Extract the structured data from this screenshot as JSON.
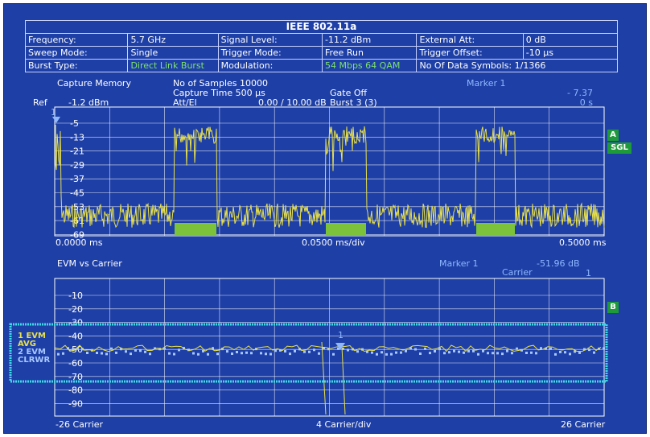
{
  "title": "IEEE 802.11a",
  "info": [
    {
      "label": "Frequency:",
      "value": "5.7 GHz",
      "label2": "Signal Level:",
      "value2": "-11.2 dBm",
      "label3": "External Att:",
      "value3": "0 dB"
    },
    {
      "label": "Sweep Mode:",
      "value": "Single",
      "label2": "Trigger Mode:",
      "value2": "Free Run",
      "label3": "Trigger Offset:",
      "value3": "-10 μs"
    },
    {
      "label": "Burst Type:",
      "value": "Direct Link Burst",
      "label2": "Modulation:",
      "value2": "54 Mbps 64 QAM",
      "label3": "No Of Data Symbols: 1/1366",
      "value3": ""
    }
  ],
  "capture": {
    "name": "Capture Memory",
    "samples": "No of Samples 10000",
    "capture_time": "Capture Time  500 μs",
    "gate": "Gate  Off",
    "ref_label": "Ref",
    "ref_value": "-1.2 dBm",
    "att_label": "Att/El",
    "att_value": "0.00 / 10.00 dB",
    "burst": "Burst 3 (3)",
    "marker_label": "Marker 1",
    "marker_value": "- 7.37",
    "marker_time": "0 s",
    "x_start": "0.0000 ms",
    "x_div": "0.0500 ms/div",
    "x_end": "0.5000 ms",
    "y_ticks": [
      "-5",
      "-13",
      "-21",
      "-29",
      "-37",
      "-45",
      "-53",
      "-61",
      "-69"
    ],
    "marker_num": "1",
    "badge_a": "A",
    "badge_sgl": "SGL"
  },
  "evm": {
    "name": "EVM vs Carrier",
    "marker_label": "Marker 1",
    "marker_value": "-51.96 dB",
    "carrier_label": "Carrier",
    "carrier_value": "1",
    "x_start": "-26 Carrier",
    "x_div": "4 Carrier/div",
    "x_end": "26 Carrier",
    "y_ticks": [
      "-10",
      "-20",
      "-30",
      "-40",
      "-50",
      "-60",
      "-70",
      "-80",
      "-90"
    ],
    "badge_b": "B",
    "trace1": "1 EVM",
    "trace1_mode": "AVG",
    "trace2": "2 EVM",
    "trace2_mode": "CLRWR",
    "marker_num": "1"
  },
  "colors": {
    "background": "#1e3fa6",
    "trace_yellow": "#e8e04a",
    "trace_green": "#7cc23a",
    "marker_blue": "#8fb8ff",
    "badge_green": "#1f9a3a"
  }
}
